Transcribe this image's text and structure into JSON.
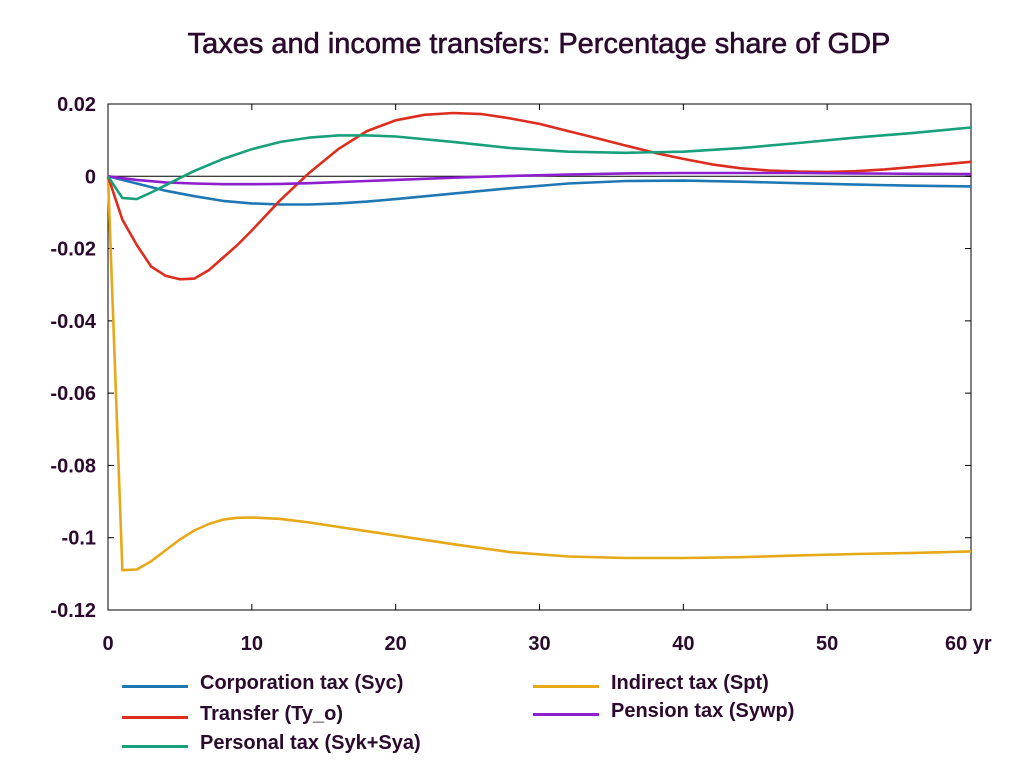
{
  "chart_data": {
    "type": "line",
    "title": "Taxes and income transfers: Percentage share of GDP",
    "xlabel": "",
    "ylabel": "",
    "xlim": [
      0,
      60
    ],
    "ylim": [
      -0.12,
      0.02
    ],
    "x_ticks": [
      0,
      10,
      20,
      30,
      40,
      50,
      60
    ],
    "x_tick_labels": [
      "0",
      "10",
      "20",
      "30",
      "40",
      "50",
      "60 yr"
    ],
    "y_ticks": [
      0.02,
      0,
      -0.02,
      -0.04,
      -0.06,
      -0.08,
      -0.1,
      -0.12
    ],
    "y_tick_labels": [
      "0.02",
      "0",
      "-0.02",
      "-0.04",
      "-0.06",
      "-0.08",
      "-0.1",
      "-0.12"
    ],
    "zero_line": true,
    "grid": false,
    "legend_position": "bottom",
    "series": [
      {
        "name": "Corporation tax (Syc)",
        "color": "#1f77b4",
        "x": [
          0,
          2,
          4,
          6,
          8,
          10,
          12,
          14,
          16,
          18,
          20,
          24,
          28,
          32,
          36,
          40,
          44,
          48,
          52,
          56,
          60
        ],
        "y": [
          0,
          -0.002,
          -0.004,
          -0.0055,
          -0.0068,
          -0.0075,
          -0.0078,
          -0.0078,
          -0.0075,
          -0.007,
          -0.0063,
          -0.0048,
          -0.0033,
          -0.002,
          -0.0013,
          -0.0012,
          -0.0015,
          -0.0019,
          -0.0023,
          -0.0026,
          -0.0028
        ]
      },
      {
        "name": "Indirect tax (Spt)",
        "color": "#e6a817",
        "x": [
          0,
          1,
          2,
          3,
          4,
          5,
          6,
          7,
          8,
          9,
          10,
          12,
          14,
          16,
          18,
          20,
          24,
          28,
          32,
          36,
          40,
          44,
          48,
          52,
          56,
          60
        ],
        "y": [
          0,
          -0.109,
          -0.1088,
          -0.1065,
          -0.1035,
          -0.1005,
          -0.098,
          -0.0962,
          -0.095,
          -0.0945,
          -0.0944,
          -0.0948,
          -0.0958,
          -0.097,
          -0.0982,
          -0.0994,
          -0.1018,
          -0.104,
          -0.1052,
          -0.1056,
          -0.1056,
          -0.1054,
          -0.1049,
          -0.1045,
          -0.1042,
          -0.1038
        ]
      },
      {
        "name": "Transfer (Ty_o)",
        "color": "#dd2d1e",
        "x": [
          0,
          1,
          2,
          3,
          4,
          5,
          6,
          7,
          8,
          9,
          10,
          12,
          14,
          16,
          18,
          20,
          22,
          24,
          26,
          28,
          30,
          32,
          34,
          36,
          38,
          40,
          42,
          44,
          46,
          48,
          50,
          52,
          54,
          56,
          58,
          60
        ],
        "y": [
          0,
          -0.012,
          -0.019,
          -0.025,
          -0.0275,
          -0.0285,
          -0.0283,
          -0.026,
          -0.0225,
          -0.019,
          -0.015,
          -0.0065,
          0.001,
          0.0075,
          0.0125,
          0.0155,
          0.017,
          0.0175,
          0.0172,
          0.016,
          0.0145,
          0.0125,
          0.0105,
          0.0085,
          0.0065,
          0.0048,
          0.0033,
          0.0022,
          0.0016,
          0.0013,
          0.0012,
          0.0014,
          0.0019,
          0.0026,
          0.0033,
          0.004
        ]
      },
      {
        "name": "Pension tax (Sywp)",
        "color": "#8d1fcf",
        "x": [
          0,
          2,
          4,
          6,
          8,
          10,
          12,
          14,
          16,
          18,
          20,
          24,
          28,
          32,
          36,
          40,
          44,
          48,
          52,
          56,
          60
        ],
        "y": [
          0,
          -0.001,
          -0.0017,
          -0.002,
          -0.0022,
          -0.0022,
          -0.0021,
          -0.0019,
          -0.0016,
          -0.0013,
          -0.001,
          -0.0004,
          0.0001,
          0.0005,
          0.0008,
          0.0009,
          0.0009,
          0.0009,
          0.0008,
          0.0007,
          0.0006
        ]
      },
      {
        "name": "Personal tax (Syk+Sya)",
        "color": "#18a07a",
        "x": [
          0,
          1,
          2,
          3,
          4,
          5,
          6,
          8,
          10,
          12,
          14,
          16,
          18,
          20,
          24,
          28,
          32,
          36,
          40,
          44,
          48,
          52,
          56,
          60
        ],
        "y": [
          0,
          -0.006,
          -0.0063,
          -0.0045,
          -0.0025,
          -0.0005,
          0.0015,
          0.0048,
          0.0075,
          0.0095,
          0.0107,
          0.0113,
          0.0113,
          0.011,
          0.0095,
          0.0078,
          0.0068,
          0.0065,
          0.0068,
          0.0078,
          0.0092,
          0.0107,
          0.012,
          0.0135
        ]
      }
    ]
  }
}
